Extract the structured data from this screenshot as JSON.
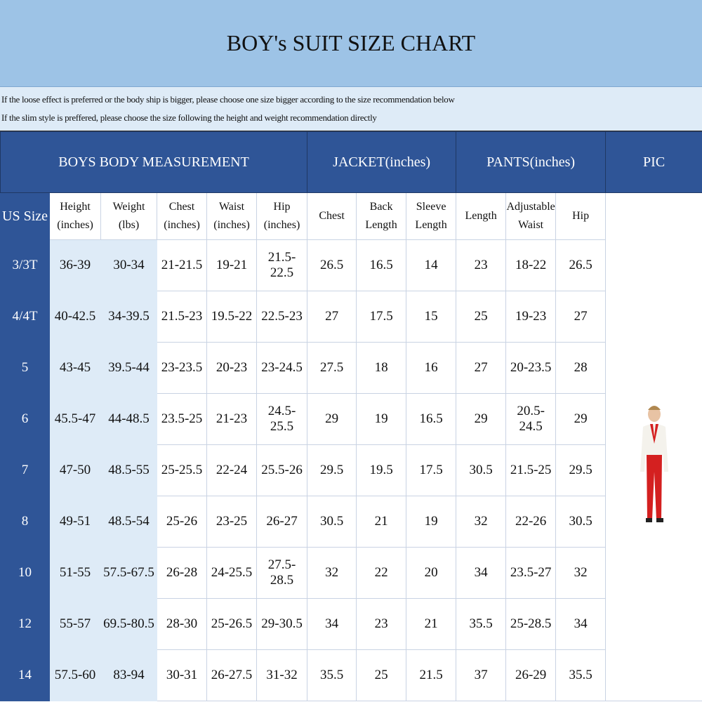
{
  "title": "BOY's SUIT SIZE CHART",
  "notes": [
    "If the loose effect is preferred or the body ship is bigger, please choose one size bigger according to the size recommendation below",
    "If the slim style is preffered, please choose the size following the height and weight recommendation directly"
  ],
  "groups": {
    "body": "BOYS BODY MEASUREMENT",
    "jacket": "JACKET(inches)",
    "pants": "PANTS(inches)",
    "pic": "PIC"
  },
  "columns": [
    [
      "US Size"
    ],
    [
      "Height",
      "(inches)"
    ],
    [
      "Weight (lbs)"
    ],
    [
      "Chest",
      "(inches)"
    ],
    [
      "Waist",
      "(inches)"
    ],
    [
      "Hip",
      "(inches)"
    ],
    [
      "Chest"
    ],
    [
      "Back",
      "Length"
    ],
    [
      "Sleeve",
      "Length"
    ],
    [
      "Length"
    ],
    [
      "Adjustable",
      "Waist"
    ],
    [
      "Hip"
    ]
  ],
  "rows": [
    [
      "3/3T",
      "36-39",
      "30-34",
      "21-21.5",
      "19-21",
      "21.5-22.5",
      "26.5",
      "16.5",
      "14",
      "23",
      "18-22",
      "26.5"
    ],
    [
      "4/4T",
      "40-42.5",
      "34-39.5",
      "21.5-23",
      "19.5-22",
      "22.5-23",
      "27",
      "17.5",
      "15",
      "25",
      "19-23",
      "27"
    ],
    [
      "5",
      "43-45",
      "39.5-44",
      "23-23.5",
      "20-23",
      "23-24.5",
      "27.5",
      "18",
      "16",
      "27",
      "20-23.5",
      "28"
    ],
    [
      "6",
      "45.5-47",
      "44-48.5",
      "23.5-25",
      "21-23",
      "24.5-25.5",
      "29",
      "19",
      "16.5",
      "29",
      "20.5-24.5",
      "29"
    ],
    [
      "7",
      "47-50",
      "48.5-55",
      "25-25.5",
      "22-24",
      "25.5-26",
      "29.5",
      "19.5",
      "17.5",
      "30.5",
      "21.5-25",
      "29.5"
    ],
    [
      "8",
      "49-51",
      "48.5-54",
      "25-26",
      "23-25",
      "26-27",
      "30.5",
      "21",
      "19",
      "32",
      "22-26",
      "30.5"
    ],
    [
      "10",
      "51-55",
      "57.5-67.5",
      "26-28",
      "24-25.5",
      "27.5-28.5",
      "32",
      "22",
      "20",
      "34",
      "23.5-27",
      "32"
    ],
    [
      "12",
      "55-57",
      "69.5-80.5",
      "28-30",
      "25-26.5",
      "29-30.5",
      "34",
      "23",
      "21",
      "35.5",
      "25-28.5",
      "34"
    ],
    [
      "14",
      "57.5-60",
      "83-94",
      "30-31",
      "26-27.5",
      "31-32",
      "35.5",
      "25",
      "21.5",
      "37",
      "26-29",
      "35.5"
    ]
  ],
  "colors": {
    "title_bg": "#9dc3e6",
    "note_bg": "#deebf7",
    "header_blue": "#2f5597",
    "light_blue": "#deebf7"
  },
  "picture": "boy-in-white-jacket-red-pants-image"
}
